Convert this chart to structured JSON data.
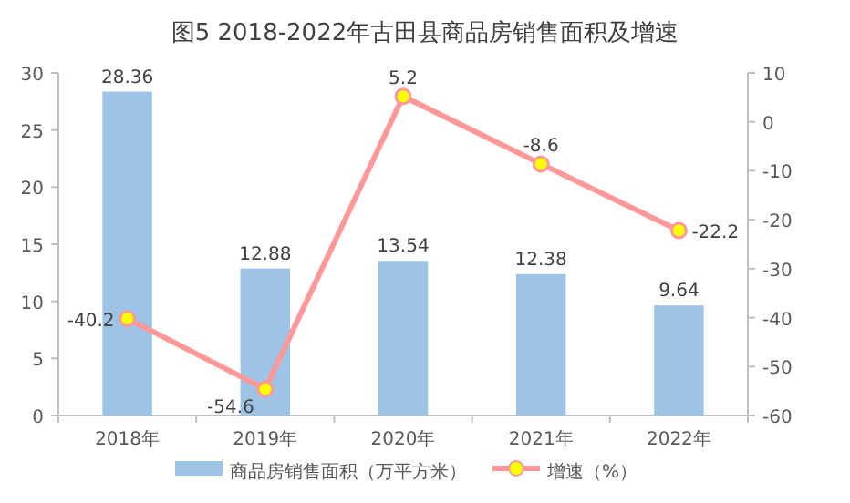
{
  "chart_data": {
    "type": "bar",
    "title": "图5 2018-2022年古田县商品房销售面积及增速",
    "categories": [
      "2018年",
      "2019年",
      "2020年",
      "2021年",
      "2022年"
    ],
    "series": [
      {
        "name": "商品房销售面积（万平方米）",
        "color": "#9dc3e6",
        "values": [
          28.36,
          12.88,
          13.54,
          12.38,
          9.64
        ]
      },
      {
        "name": "增速（%）",
        "type": "line",
        "axis": "y2",
        "color": "#ff9999",
        "marker": "circle",
        "values": [
          -40.2,
          -54.6,
          5.2,
          -8.6,
          -22.2
        ]
      }
    ],
    "ylim": [
      0,
      30
    ],
    "yticks": [
      0,
      5,
      10,
      15,
      20,
      25,
      30
    ],
    "y2lim": [
      -60,
      10
    ],
    "y2ticks": [
      -60,
      -50,
      -40,
      -30,
      -20,
      -10,
      0,
      10
    ],
    "data_labels": true,
    "grid": false,
    "legend": "bottom"
  }
}
